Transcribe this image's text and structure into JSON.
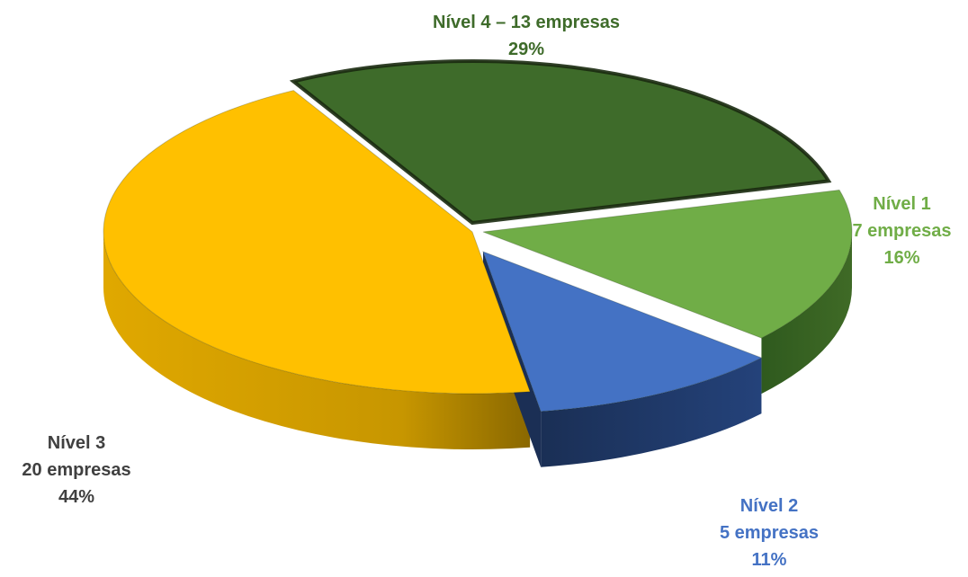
{
  "chart_data": {
    "type": "pie",
    "style": "3d-exploded",
    "title": "",
    "slices": [
      {
        "name": "Nível 1",
        "count_label": "7 empresas",
        "value": 7,
        "percent_label": "16%",
        "percent": 16,
        "color": "#70AD47",
        "side": "#3F6A26",
        "text_color": "#70AD47"
      },
      {
        "name": "Nível 2",
        "count_label": "5 empresas",
        "value": 5,
        "percent_label": "11%",
        "percent": 11,
        "color": "#4472C4",
        "side": "#1F3864",
        "text_color": "#4472C4"
      },
      {
        "name": "Nível 3",
        "count_label": "20 empresas",
        "value": 20,
        "percent_label": "44%",
        "percent": 44,
        "color": "#FFC000",
        "side": "#B88A00",
        "text_color": "#404040"
      },
      {
        "name": "Nível 4",
        "count_label": "13 empresas",
        "value": 13,
        "percent_label": "29%",
        "percent": 29,
        "color": "#3E6B2A",
        "side": "#24401A",
        "text_color": "#3E6B2A",
        "combined_label": "Nível 4 – 13 empresas"
      }
    ]
  }
}
